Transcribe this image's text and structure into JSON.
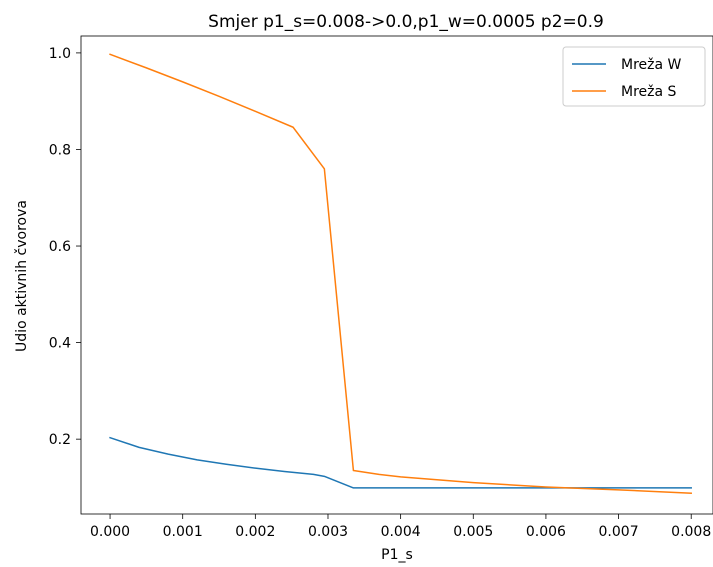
{
  "chart_data": {
    "type": "line",
    "title": "Smjer p1_s=0.008->0.0,p1_w=0.0005 p2=0.9",
    "xlabel": "P1_s",
    "ylabel": "Udio aktivnih čvorova",
    "xlim": [
      -0.0004,
      0.0083
    ],
    "ylim": [
      0.045,
      1.035
    ],
    "xticks": [
      0.0,
      0.001,
      0.002,
      0.003,
      0.004,
      0.005,
      0.006,
      0.007,
      0.008
    ],
    "xtick_labels": [
      "0.000",
      "0.001",
      "0.002",
      "0.003",
      "0.004",
      "0.005",
      "0.006",
      "0.007",
      "0.008"
    ],
    "yticks": [
      0.2,
      0.4,
      0.6,
      0.8,
      1.0
    ],
    "ytick_labels": [
      "0.2",
      "0.4",
      "0.6",
      "0.8",
      "1.0"
    ],
    "grid": false,
    "legend_position": "top-right",
    "series": [
      {
        "name": "Mreža W",
        "color": "#1f77b4",
        "x": [
          0.0,
          0.0004,
          0.0008,
          0.0012,
          0.0016,
          0.002,
          0.0024,
          0.0028,
          0.00295,
          0.00335,
          0.004,
          0.005,
          0.006,
          0.007,
          0.008
        ],
        "y": [
          0.203,
          0.183,
          0.169,
          0.157,
          0.148,
          0.14,
          0.133,
          0.127,
          0.123,
          0.099,
          0.099,
          0.099,
          0.099,
          0.099,
          0.099
        ]
      },
      {
        "name": "Mreža S",
        "color": "#ff7f0e",
        "x": [
          0.0,
          0.0005,
          0.001,
          0.0015,
          0.002,
          0.00252,
          0.00295,
          0.00335,
          0.0037,
          0.004,
          0.005,
          0.006,
          0.007,
          0.008
        ],
        "y": [
          0.997,
          0.969,
          0.94,
          0.91,
          0.879,
          0.846,
          0.76,
          0.135,
          0.127,
          0.122,
          0.11,
          0.101,
          0.095,
          0.088
        ]
      }
    ]
  }
}
